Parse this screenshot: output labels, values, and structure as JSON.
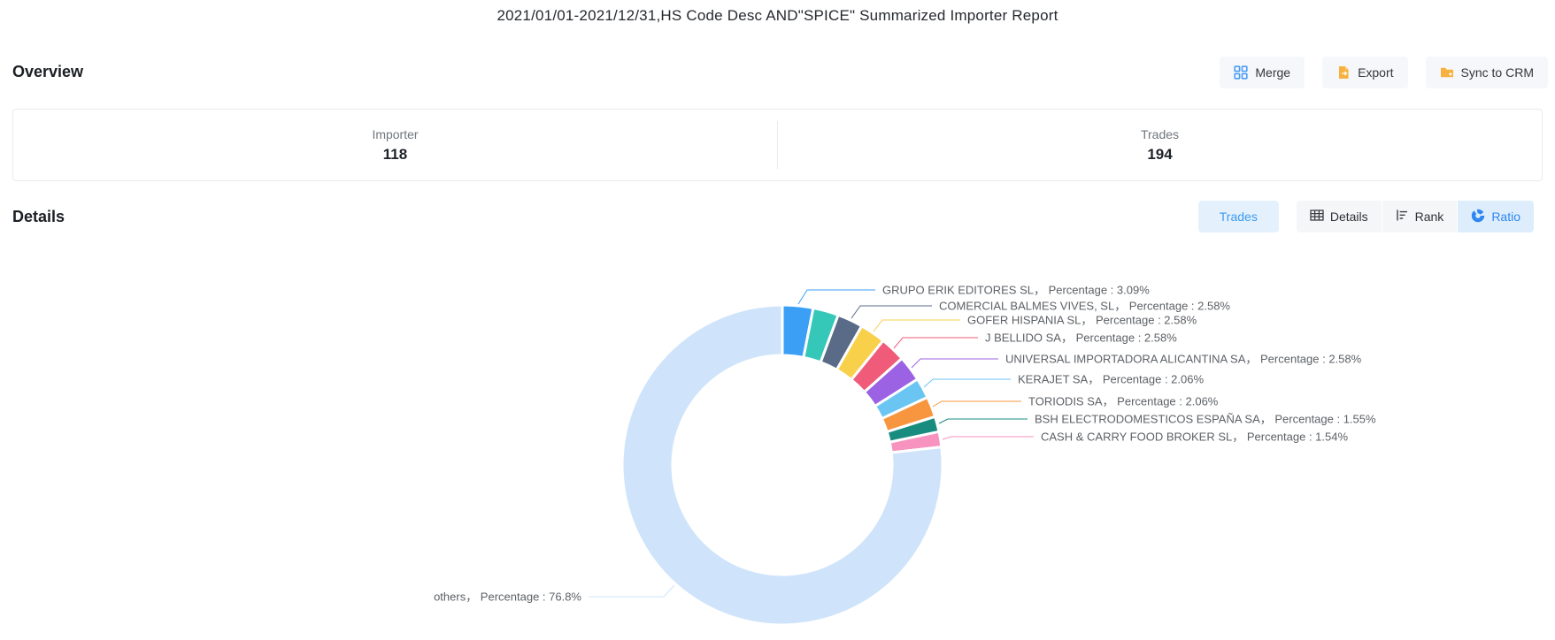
{
  "title": "2021/01/01-2021/12/31,HS Code Desc AND\"SPICE\" Summarized Importer Report",
  "overview": {
    "heading": "Overview",
    "buttons": {
      "merge": "Merge",
      "export": "Export",
      "sync": "Sync to CRM"
    },
    "stats": [
      {
        "label": "Importer",
        "value": "118"
      },
      {
        "label": "Trades",
        "value": "194"
      }
    ]
  },
  "details": {
    "heading": "Details",
    "trades_button": "Trades",
    "view_buttons": [
      {
        "label": "Details",
        "active": false
      },
      {
        "label": "Rank",
        "active": false
      },
      {
        "label": "Ratio",
        "active": true
      }
    ]
  },
  "chart_data": {
    "type": "pie",
    "subtype": "donut",
    "legend_position": "none",
    "label_format": "{name}，  Percentage : {pct}%",
    "series": [
      {
        "name": "GRUPO ERIK EDITORES SL",
        "value": 3.09,
        "color": "#3b9ff6"
      },
      {
        "name": "",
        "value": 2.58,
        "color": "#35c8b9",
        "label_hidden": true
      },
      {
        "name": "COMERCIAL BALMES VIVES, SL",
        "value": 2.58,
        "color": "#5a6b88"
      },
      {
        "name": "GOFER HISPANIA SL",
        "value": 2.58,
        "color": "#f8d04a"
      },
      {
        "name": "J BELLIDO SA",
        "value": 2.58,
        "color": "#f05b79"
      },
      {
        "name": "UNIVERSAL IMPORTADORA ALICANTINA SA",
        "value": 2.58,
        "color": "#9c62e4"
      },
      {
        "name": "KERAJET SA",
        "value": 2.06,
        "color": "#6bc5f2"
      },
      {
        "name": "TORIODIS SA",
        "value": 2.06,
        "color": "#f8963f"
      },
      {
        "name": "BSH ELECTRODOMESTICOS ESPAÑA SA",
        "value": 1.55,
        "color": "#198c80"
      },
      {
        "name": "CASH & CARRY FOOD BROKER SL",
        "value": 1.54,
        "color": "#f893c0"
      },
      {
        "name": "others",
        "value": 76.8,
        "color": "#cfe4fb"
      }
    ]
  }
}
